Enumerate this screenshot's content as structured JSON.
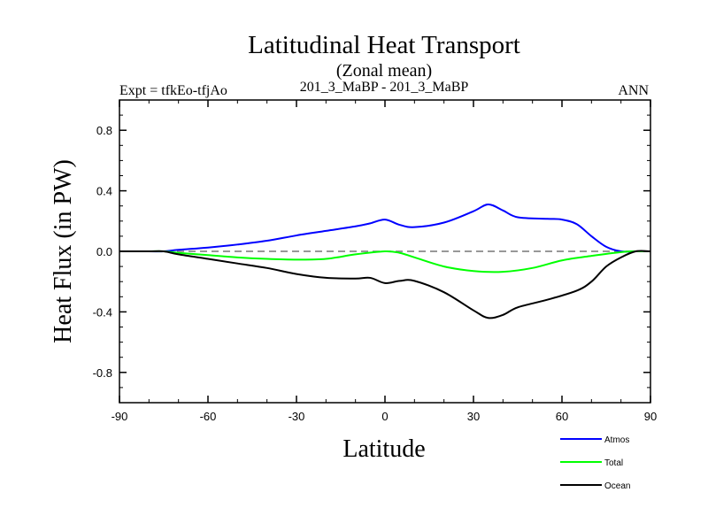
{
  "chart_data": {
    "type": "line",
    "title": "Latitudinal Heat Transport",
    "subtitle": "(Zonal mean)",
    "left_label": "Expt = tfkEo-tfjAo",
    "center_label": "201_3_MaBP - 201_3_MaBP",
    "right_label": "ANN",
    "xlabel": "Latitude",
    "ylabel": "Heat Flux (in PW)",
    "xlim": [
      -90,
      90
    ],
    "ylim": [
      -1.0,
      1.0
    ],
    "x_ticks": [
      -90,
      -60,
      -30,
      0,
      30,
      60,
      90
    ],
    "x_tick_labels": [
      "-90",
      "-60",
      "-30",
      "0",
      "30",
      "60",
      "90"
    ],
    "y_ticks": [
      -0.8,
      -0.4,
      0.0,
      0.4,
      0.8
    ],
    "y_tick_labels": [
      "-0.8",
      "-0.4",
      "0.0",
      "0.4",
      "0.8"
    ],
    "zero_line": true,
    "legend_position": "bottom-right",
    "series": [
      {
        "name": "Atmos",
        "color": "#0000ff",
        "x": [
          -90,
          -80,
          -75,
          -70,
          -60,
          -50,
          -40,
          -30,
          -20,
          -10,
          -5,
          0,
          5,
          10,
          20,
          30,
          35,
          40,
          45,
          55,
          60,
          65,
          70,
          75,
          80,
          85,
          90
        ],
        "y": [
          0,
          0,
          0,
          0.01,
          0.025,
          0.045,
          0.07,
          0.105,
          0.135,
          0.165,
          0.185,
          0.21,
          0.175,
          0.16,
          0.19,
          0.265,
          0.31,
          0.27,
          0.225,
          0.215,
          0.21,
          0.18,
          0.1,
          0.03,
          0,
          0,
          0
        ]
      },
      {
        "name": "Total",
        "color": "#00ff00",
        "x": [
          -90,
          -80,
          -75,
          -70,
          -60,
          -50,
          -40,
          -30,
          -20,
          -10,
          0,
          5,
          10,
          20,
          30,
          40,
          50,
          60,
          70,
          80,
          85,
          90
        ],
        "y": [
          0,
          0,
          0,
          -0.01,
          -0.025,
          -0.04,
          -0.05,
          -0.055,
          -0.05,
          -0.02,
          0,
          -0.01,
          -0.04,
          -0.1,
          -0.13,
          -0.135,
          -0.11,
          -0.06,
          -0.03,
          -0.005,
          0,
          0
        ]
      },
      {
        "name": "Ocean",
        "color": "#000000",
        "x": [
          -90,
          -80,
          -75,
          -70,
          -60,
          -50,
          -40,
          -30,
          -20,
          -10,
          -5,
          0,
          5,
          10,
          20,
          30,
          35,
          40,
          45,
          55,
          65,
          70,
          75,
          80,
          85,
          90
        ],
        "y": [
          0,
          0,
          0,
          -0.02,
          -0.05,
          -0.08,
          -0.11,
          -0.15,
          -0.175,
          -0.18,
          -0.175,
          -0.21,
          -0.195,
          -0.195,
          -0.27,
          -0.39,
          -0.44,
          -0.42,
          -0.37,
          -0.32,
          -0.26,
          -0.2,
          -0.1,
          -0.04,
          0,
          0
        ]
      }
    ]
  }
}
